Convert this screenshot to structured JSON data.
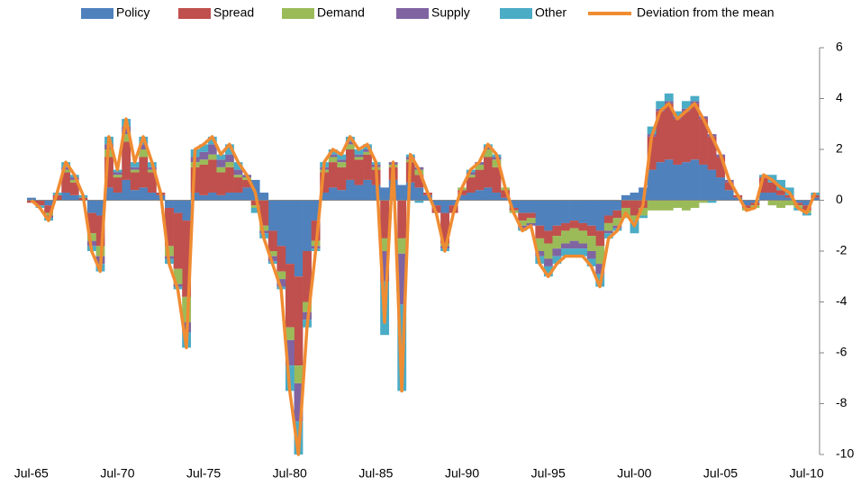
{
  "chart_data": {
    "type": "bar",
    "stacked": true,
    "grid": false,
    "legend": "top",
    "categories": [
      "Jul-65",
      null,
      null,
      null,
      null,
      null,
      null,
      null,
      null,
      null,
      "Jul-70",
      null,
      null,
      null,
      null,
      null,
      null,
      null,
      null,
      null,
      "Jul-75",
      null,
      null,
      null,
      null,
      null,
      null,
      null,
      null,
      null,
      "Jul-80",
      null,
      null,
      null,
      null,
      null,
      null,
      null,
      null,
      null,
      "Jul-85",
      null,
      null,
      null,
      null,
      null,
      null,
      null,
      null,
      null,
      "Jul-90",
      null,
      null,
      null,
      null,
      null,
      null,
      null,
      null,
      null,
      "Jul-95",
      null,
      null,
      null,
      null,
      null,
      null,
      null,
      null,
      null,
      "Jul-00",
      null,
      null,
      null,
      null,
      null,
      null,
      null,
      null,
      null,
      "Jul-05",
      null,
      null,
      null,
      null,
      null,
      null,
      null,
      null,
      null,
      "Jul-10",
      null
    ],
    "ylim": [
      -10,
      6
    ],
    "yticks": [
      -10,
      -8,
      -6,
      -4,
      -2,
      0,
      2,
      4,
      6
    ],
    "y_axis_side": "right",
    "series": [
      {
        "name": "Policy",
        "type": "bar",
        "color": "#4f81bd",
        "values": [
          0.1,
          0,
          -0.2,
          0,
          0.3,
          0.2,
          0,
          -0.5,
          -0.6,
          0.5,
          0.3,
          0.8,
          0.4,
          0.5,
          0.3,
          0.2,
          -0.3,
          -0.5,
          -0.8,
          0.3,
          0.2,
          0.3,
          0.2,
          0.3,
          0.3,
          0.5,
          0.8,
          0.3,
          -1.2,
          -1.8,
          -2.5,
          -3.0,
          -2.0,
          -0.8,
          0.3,
          0.5,
          0.4,
          0.8,
          0.6,
          0.8,
          0.6,
          0.5,
          0.8,
          0.6,
          0.7,
          0.5,
          0.2,
          -0.2,
          -0.5,
          -0.2,
          0.2,
          0.3,
          0.4,
          0.5,
          0.3,
          0.1,
          -0.3,
          -0.5,
          -0.5,
          -1.0,
          -1.2,
          -1.0,
          -0.9,
          -0.8,
          -0.9,
          -1.0,
          -1.2,
          -0.6,
          -0.4,
          0.2,
          0.3,
          0.5,
          1.2,
          1.5,
          1.6,
          1.4,
          1.5,
          1.6,
          1.4,
          1.2,
          0.9,
          0.4,
          0.1,
          -0.2,
          -0.1,
          0.3,
          0.3,
          0.2,
          0.1,
          -0.1,
          -0.2,
          0.1
        ]
      },
      {
        "name": "Spread",
        "type": "bar",
        "color": "#c0504d",
        "values": [
          -0.1,
          -0.2,
          -0.3,
          0.2,
          0.8,
          0.5,
          0.1,
          -0.8,
          -1.2,
          1.2,
          0.6,
          1.5,
          0.7,
          1.2,
          0.8,
          0.1,
          -1.5,
          -2.2,
          -3.0,
          1.0,
          1.2,
          1.3,
          0.9,
          1.0,
          0.6,
          0.3,
          -0.2,
          -1.0,
          -0.8,
          -1.0,
          -2.5,
          -3.5,
          -2.0,
          -0.8,
          0.8,
          1.0,
          0.9,
          1.2,
          1.0,
          1.0,
          0.6,
          -1.5,
          0.5,
          -1.5,
          0.8,
          0.5,
          0.1,
          -0.3,
          -1.2,
          -0.3,
          0.2,
          0.6,
          0.8,
          1.2,
          1.0,
          0.3,
          -0.1,
          -0.3,
          -0.2,
          -0.5,
          -0.5,
          -0.4,
          -0.3,
          -0.3,
          -0.3,
          -0.4,
          -0.6,
          -0.3,
          -0.3,
          -0.3,
          -0.6,
          -0.3,
          1.3,
          2.0,
          2.2,
          1.8,
          2.0,
          2.2,
          1.8,
          1.3,
          0.8,
          0.3,
          0.1,
          -0.1,
          -0.1,
          0.6,
          0.4,
          0.2,
          0.1,
          -0.1,
          -0.2,
          0.1
        ]
      },
      {
        "name": "Demand",
        "type": "bar",
        "color": "#9bbb59",
        "values": [
          0,
          0,
          -0.1,
          0,
          0.1,
          0.1,
          0,
          -0.3,
          -0.4,
          0.3,
          0.1,
          0.3,
          0.1,
          0.3,
          0.1,
          0,
          -0.4,
          -0.6,
          -1.0,
          0.2,
          0.2,
          0.2,
          0.2,
          0.2,
          0.1,
          0.1,
          -0.1,
          -0.2,
          -0.2,
          -0.3,
          -0.5,
          -0.7,
          -0.4,
          -0.2,
          0.1,
          0.2,
          0.2,
          0.2,
          0.1,
          0.1,
          0.1,
          -0.5,
          0.1,
          -0.6,
          0.1,
          0.2,
          0,
          0,
          -0.1,
          0,
          0.1,
          0.1,
          0.2,
          0.3,
          0.3,
          0.1,
          -0.1,
          -0.2,
          -0.2,
          -0.5,
          -0.6,
          -0.5,
          -0.5,
          -0.5,
          -0.5,
          -0.6,
          -0.7,
          -0.3,
          -0.3,
          -0.4,
          -0.2,
          -0.3,
          -0.4,
          -0.4,
          -0.4,
          -0.3,
          -0.4,
          -0.3,
          -0.1,
          0,
          0,
          0,
          0,
          -0.1,
          -0.1,
          0,
          -0.2,
          -0.3,
          -0.2,
          -0.1,
          -0.1,
          0
        ]
      },
      {
        "name": "Supply",
        "type": "bar",
        "color": "#8064a2",
        "values": [
          0,
          0,
          -0.1,
          0,
          0.1,
          0.1,
          0,
          -0.2,
          -0.3,
          0.2,
          0.1,
          0.3,
          0.1,
          0.2,
          0.1,
          0,
          -0.1,
          -0.1,
          -0.4,
          0.2,
          0.3,
          0.4,
          0.3,
          0.3,
          0.2,
          0.1,
          0,
          -0.1,
          -0.2,
          -0.3,
          -1.0,
          -1.5,
          -0.3,
          -0.1,
          0.1,
          0.1,
          0.1,
          0.1,
          0.1,
          0.1,
          0.1,
          -1.2,
          0.1,
          -2.0,
          0.1,
          0.1,
          0,
          0,
          -0.1,
          0,
          0,
          0.1,
          0.1,
          0.1,
          0.1,
          0,
          0,
          -0.1,
          -0.1,
          -0.2,
          -0.3,
          -0.3,
          -0.2,
          -0.3,
          -0.2,
          -0.3,
          -0.4,
          -0.1,
          -0.1,
          0,
          0,
          0,
          0.1,
          0.1,
          0.1,
          0.1,
          0.1,
          0.1,
          0.1,
          0.1,
          0.1,
          0.1,
          0,
          0,
          0,
          0,
          0,
          0,
          0,
          0,
          0,
          0
        ]
      },
      {
        "name": "Other",
        "type": "bar",
        "color": "#4bacc6",
        "values": [
          0,
          -0.1,
          -0.1,
          0.1,
          0.2,
          0.1,
          0.1,
          -0.2,
          -0.3,
          0.3,
          0.1,
          0.3,
          0.2,
          0.3,
          0.2,
          0,
          -0.2,
          -0.1,
          -0.6,
          0.3,
          0.3,
          0.3,
          0.2,
          0.4,
          0.3,
          0,
          -0.2,
          -0.2,
          -0.1,
          -0.1,
          -1.0,
          -1.3,
          -0.3,
          -0.1,
          0.2,
          0.2,
          0.2,
          0.2,
          0.2,
          0.2,
          0.1,
          -2.1,
          0,
          -3.4,
          0.1,
          -0.1,
          0,
          0,
          -0.1,
          0,
          0,
          0.1,
          0,
          0.1,
          0.1,
          0,
          0,
          -0.1,
          0,
          -0.3,
          -0.4,
          -0.3,
          -0.3,
          -0.3,
          -0.3,
          -0.3,
          -0.5,
          -0.2,
          -0.1,
          0,
          -0.5,
          -0.1,
          0.3,
          0.3,
          0.3,
          0.2,
          0.3,
          0.2,
          0,
          -0.1,
          0,
          0,
          0,
          0,
          0,
          0.1,
          0.3,
          0.4,
          0.3,
          -0.1,
          -0.1,
          0.1
        ]
      },
      {
        "name": "Deviation from the mean",
        "type": "line",
        "color": "#f08c32",
        "values": [
          0,
          -0.3,
          -0.8,
          0.3,
          1.5,
          1.0,
          0.2,
          -2.0,
          -2.8,
          2.5,
          1.2,
          3.2,
          1.5,
          2.5,
          1.5,
          0.3,
          -2.5,
          -3.5,
          -5.8,
          2.0,
          2.2,
          2.5,
          1.8,
          2.2,
          1.5,
          1.0,
          0.3,
          -1.5,
          -2.5,
          -3.5,
          -7.5,
          -10,
          -5,
          -2,
          1.5,
          2.0,
          1.8,
          2.5,
          2.0,
          2.2,
          1.5,
          -4.8,
          1.5,
          -7.5,
          1.8,
          1.2,
          0.3,
          -0.5,
          -2.0,
          -0.5,
          0.5,
          1.2,
          1.5,
          2.2,
          1.8,
          0.5,
          -0.5,
          -1.2,
          -1.0,
          -2.5,
          -3.0,
          -2.5,
          -2.2,
          -2.2,
          -2.2,
          -2.6,
          -3.4,
          -1.5,
          -1.2,
          -0.5,
          -1.0,
          -0.2,
          2.5,
          3.5,
          3.8,
          3.2,
          3.5,
          3.8,
          3.2,
          2.5,
          1.8,
          0.8,
          0.2,
          -0.4,
          -0.3,
          1.0,
          0.8,
          0.5,
          0.3,
          -0.3,
          -0.5,
          0.3
        ]
      }
    ]
  }
}
